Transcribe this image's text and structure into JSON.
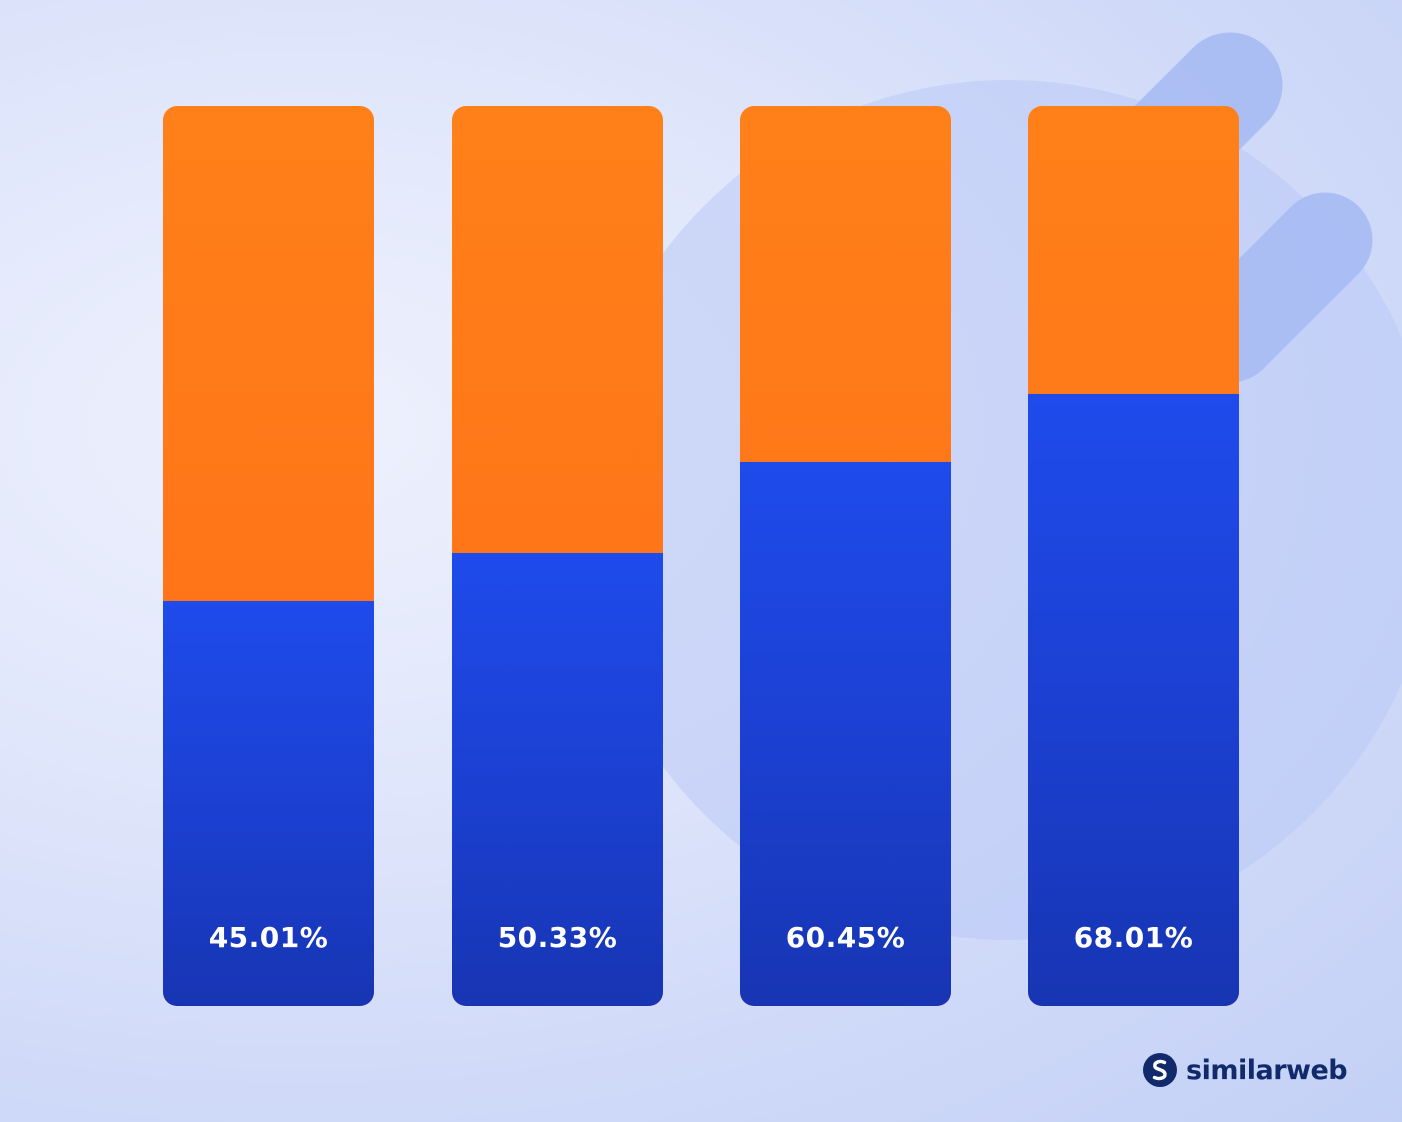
{
  "chart_data": {
    "type": "bar",
    "stacked": true,
    "categories": [
      "",
      "",
      "",
      ""
    ],
    "series": [
      {
        "values": [
          45.01,
          50.33,
          60.45,
          68.01
        ]
      },
      {
        "values": [
          54.99,
          49.67,
          39.55,
          31.99
        ]
      }
    ],
    "labels": [
      "45.01%",
      "50.33%",
      "60.45%",
      "68.01%"
    ],
    "ylim": [
      0,
      100
    ],
    "colors": {
      "primary": "#1f4bec",
      "secondary": "#ff7a18"
    },
    "grid": false,
    "axes_visible": false
  },
  "brand": {
    "name": "similarweb",
    "icon": "similarweb-logo-icon",
    "color": "#112a6b"
  }
}
